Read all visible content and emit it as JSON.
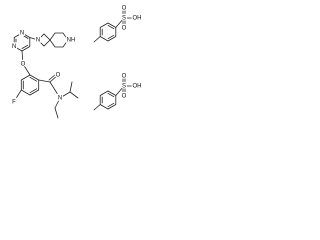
{
  "labels": [
    "N",
    "N",
    "N",
    "NH",
    "O",
    "F",
    "O",
    "N",
    "S",
    "O",
    "O",
    "OH",
    "S",
    "O",
    "O",
    "OH"
  ]
}
